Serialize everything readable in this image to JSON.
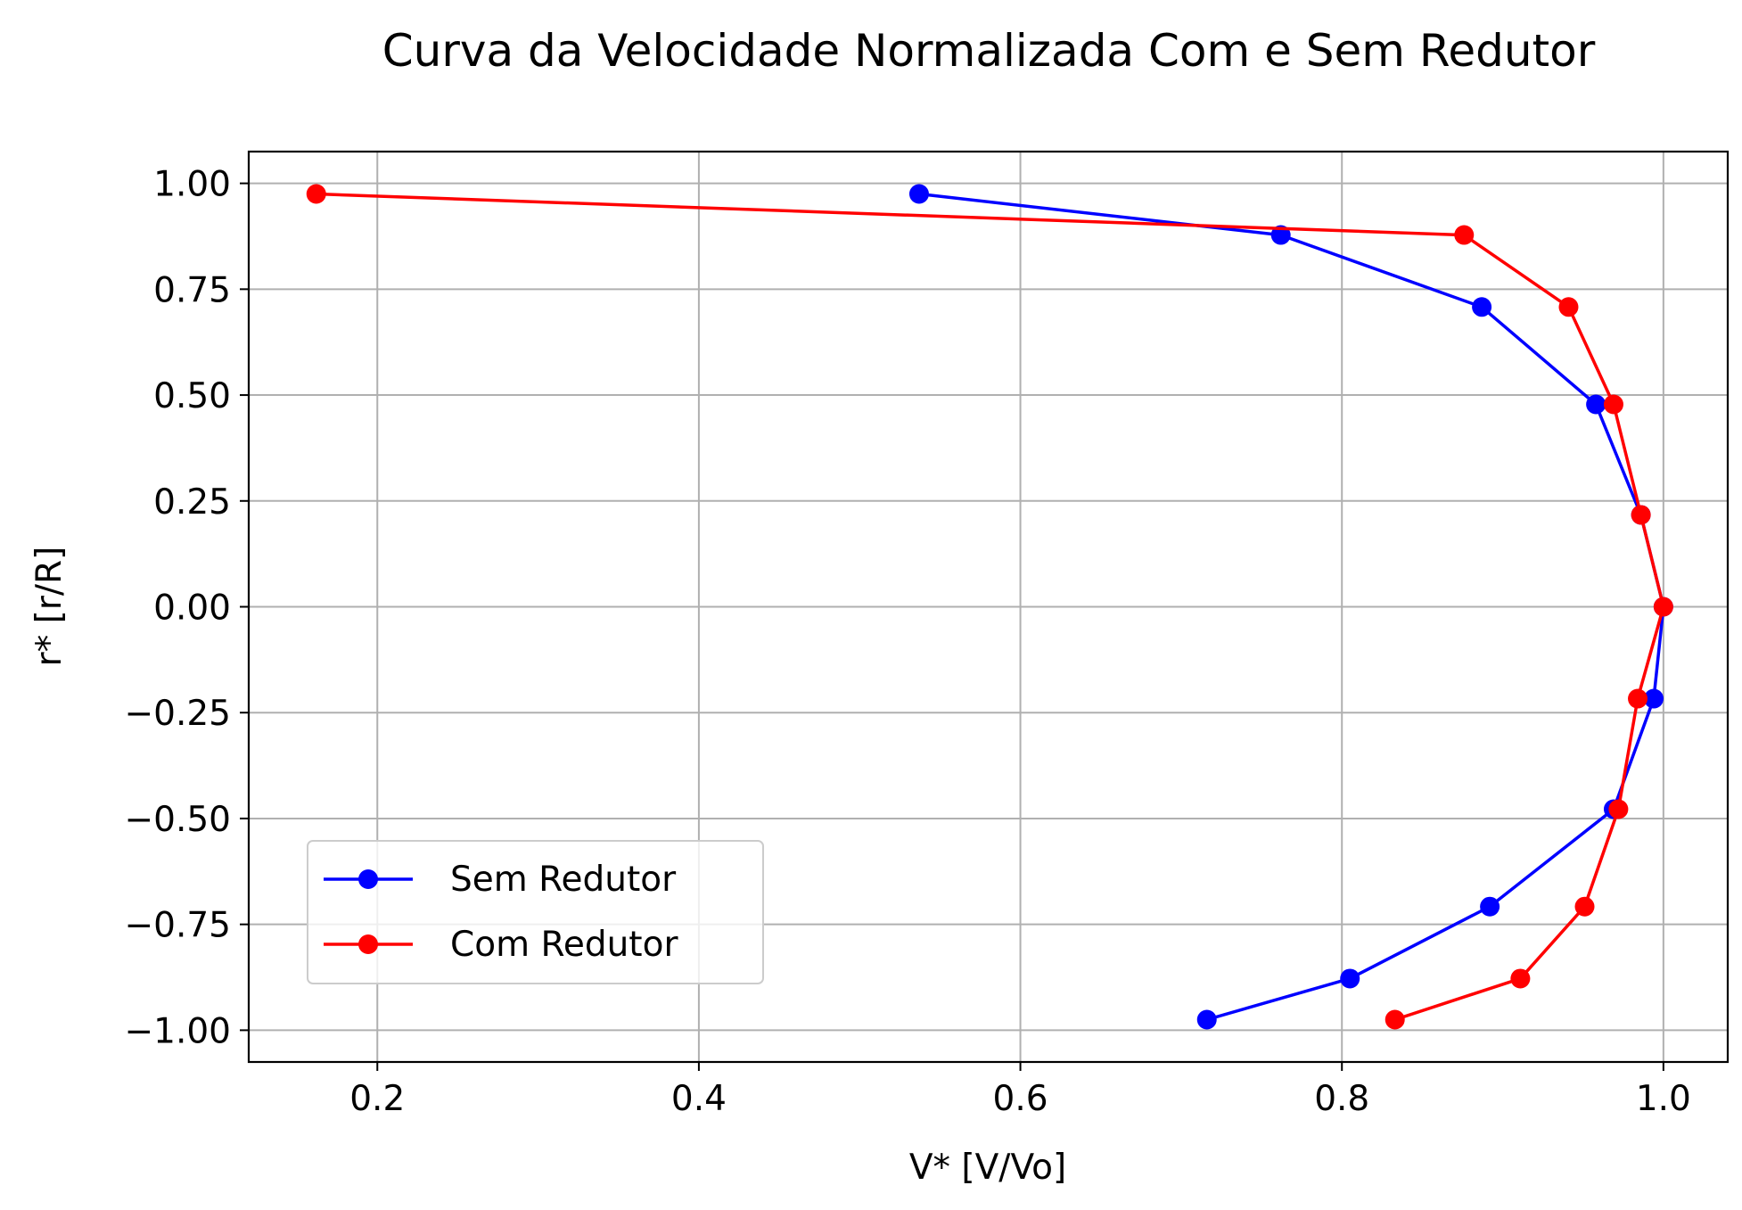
{
  "chart_data": {
    "type": "line",
    "title": "Curva da Velocidade Normalizada Com e Sem Redutor",
    "xlabel": "V* [V/Vo]",
    "ylabel": "r* [r/R]",
    "xlim": [
      0.12,
      1.04
    ],
    "ylim": [
      -1.075,
      1.075
    ],
    "xticks": [
      0.2,
      0.4,
      0.6,
      0.8,
      1.0
    ],
    "xtick_labels": [
      "0.2",
      "0.4",
      "0.6",
      "0.8",
      "1.0"
    ],
    "yticks": [
      1.0,
      0.75,
      0.5,
      0.25,
      0.0,
      -0.25,
      -0.5,
      -0.75,
      -1.0
    ],
    "ytick_labels": [
      "1.00",
      "0.75",
      "0.50",
      "0.25",
      "0.00",
      "−0.25",
      "−0.50",
      "−0.75",
      "−1.00"
    ],
    "grid": true,
    "legend_position": "lower-left",
    "series": [
      {
        "name": "Sem Redutor",
        "color": "#0000ff",
        "x": [
          0.537,
          0.762,
          0.887,
          0.958,
          0.986,
          1.0,
          0.994,
          0.969,
          0.892,
          0.805,
          0.716
        ],
        "y": [
          0.975,
          0.878,
          0.708,
          0.478,
          0.217,
          0.0,
          -0.217,
          -0.478,
          -0.708,
          -0.878,
          -0.975
        ]
      },
      {
        "name": "Com Redutor",
        "color": "#ff0000",
        "x": [
          0.162,
          0.876,
          0.941,
          0.969,
          0.986,
          1.0,
          0.984,
          0.972,
          0.951,
          0.911,
          0.833
        ],
        "y": [
          0.975,
          0.878,
          0.708,
          0.478,
          0.217,
          0.0,
          -0.217,
          -0.478,
          -0.708,
          -0.878,
          -0.975
        ]
      }
    ]
  }
}
